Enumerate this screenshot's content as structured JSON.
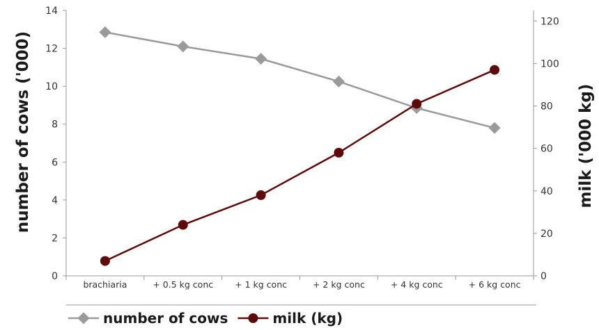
{
  "chart_data": {
    "type": "line",
    "categories": [
      "brachiaria",
      "+ 0.5 kg conc",
      "+ 1 kg conc",
      "+ 2 kg conc",
      "+ 4 kg conc",
      "+ 6 kg conc"
    ],
    "series": [
      {
        "name": "number of cows",
        "axis": "left",
        "values": [
          12.85,
          12.1,
          11.45,
          10.25,
          8.85,
          7.8
        ],
        "color": "#9a9a9a",
        "marker": "diamond"
      },
      {
        "name": "milk (kg)",
        "axis": "right",
        "values": [
          7,
          24,
          38,
          58,
          81,
          97
        ],
        "color": "#5c0a0a",
        "marker": "circle"
      }
    ],
    "ylabel": "number of cows ('000)",
    "y2label": "milk ('000 kg)",
    "ylim": [
      0,
      14
    ],
    "yticks": [
      0,
      2,
      4,
      6,
      8,
      10,
      12,
      14
    ],
    "y2lim": [
      0,
      125
    ],
    "y2ticks": [
      0,
      20,
      40,
      60,
      80,
      100,
      120
    ],
    "grid": false,
    "legend_position": "bottom"
  }
}
